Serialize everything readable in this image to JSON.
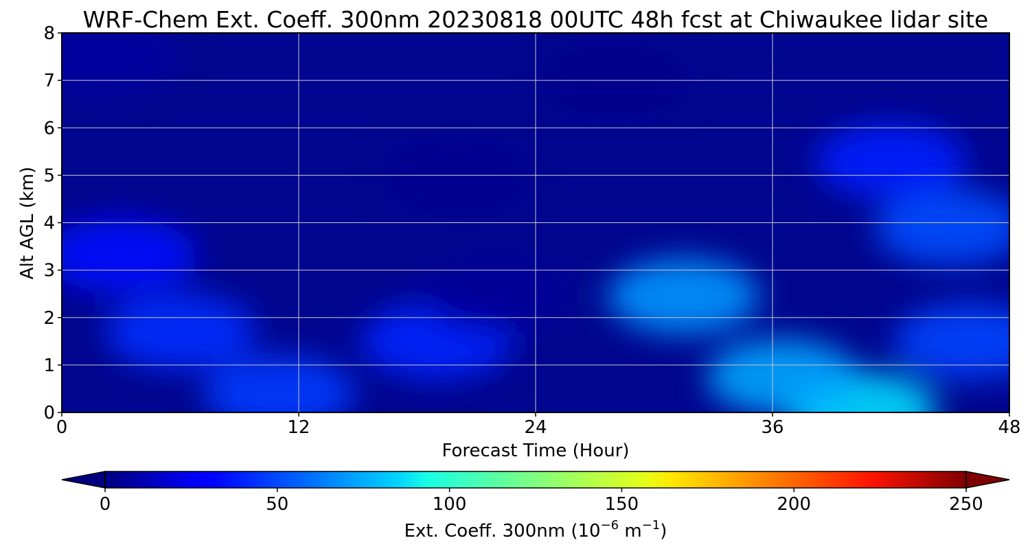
{
  "chart_data": {
    "type": "heatmap",
    "title": "WRF-Chem Ext. Coeff. 300nm  20230818 00UTC 48h fcst at Chiwaukee lidar site",
    "xlabel": "Forecast Time (Hour)",
    "ylabel": "Alt AGL (km)",
    "xlim": [
      0,
      48
    ],
    "ylim": [
      0,
      8
    ],
    "x_ticks": [
      "0",
      "12",
      "24",
      "36",
      "48"
    ],
    "y_ticks": [
      "0",
      "1",
      "2",
      "3",
      "4",
      "5",
      "6",
      "7",
      "8"
    ],
    "grid": true,
    "colorbar": {
      "label_main": "Ext. Coeff. 300nm  (10",
      "label_exp1": "−6",
      "label_mid": " m",
      "label_exp2": "−1",
      "label_end": ")",
      "range": [
        0,
        250
      ],
      "ticks": [
        "0",
        "50",
        "100",
        "150",
        "200",
        "250"
      ],
      "colormap": "jet",
      "extend": "both"
    },
    "z_units": "10^-6 m^-1",
    "z_features": [
      {
        "x": 40.5,
        "y": 0.05,
        "value": 85
      },
      {
        "x": 36.5,
        "y": 0.75,
        "value": 72
      },
      {
        "x": 31.5,
        "y": 2.45,
        "value": 68
      },
      {
        "x": 45.0,
        "y": 3.9,
        "value": 50
      },
      {
        "x": 42.0,
        "y": 5.3,
        "value": 38
      },
      {
        "x": 46.0,
        "y": 1.5,
        "value": 48
      },
      {
        "x": 6.0,
        "y": 1.7,
        "value": 42
      },
      {
        "x": 19.0,
        "y": 1.5,
        "value": 40
      },
      {
        "x": 11.0,
        "y": 0.4,
        "value": 46
      },
      {
        "x": 3.0,
        "y": 3.3,
        "value": 36
      },
      {
        "x": 20.0,
        "y": 5.0,
        "value": 4
      },
      {
        "x": 22.0,
        "y": 2.5,
        "value": 6
      },
      {
        "x": 28.0,
        "y": 7.0,
        "value": 3
      },
      {
        "x": 2.0,
        "y": 7.5,
        "value": 8
      }
    ]
  }
}
